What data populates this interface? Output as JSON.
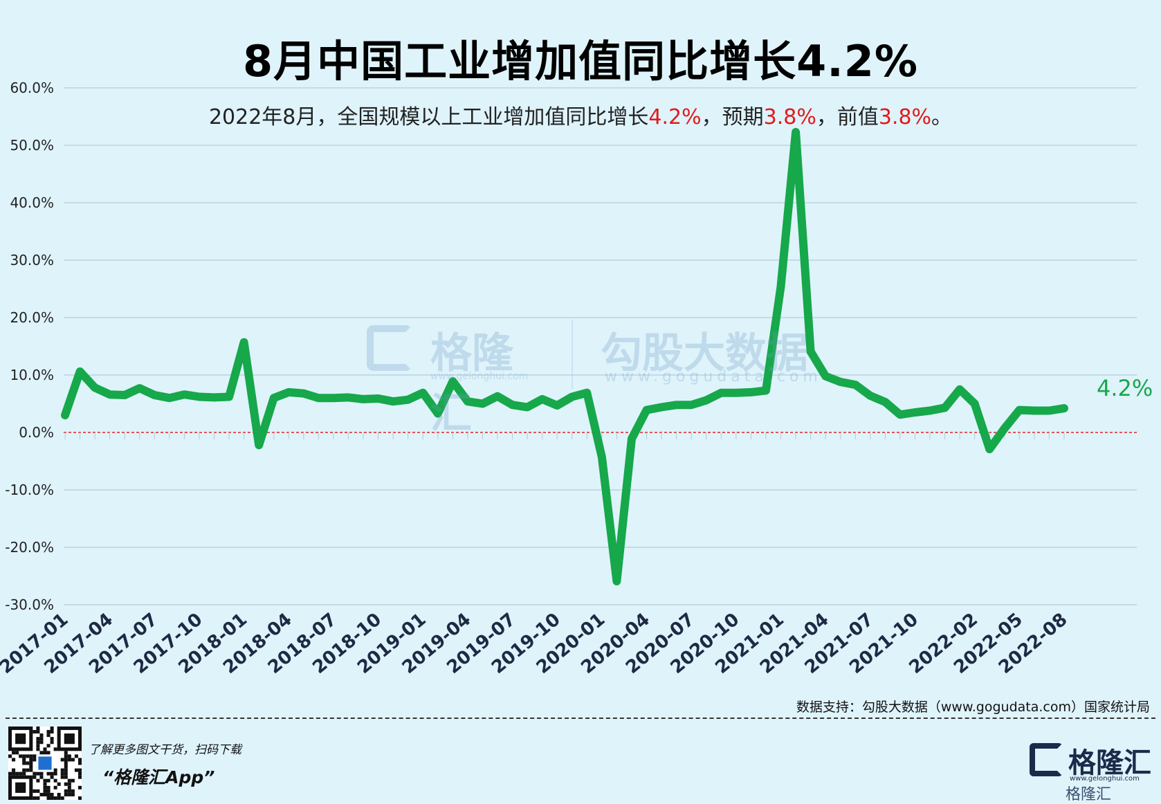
{
  "header": {
    "title": "8月中国工业增加值同比增长4.2%",
    "subtitle_parts": [
      {
        "text": "2022年8月，全国规模以上工业增加值同比增长",
        "highlight": false
      },
      {
        "text": "4.2%",
        "highlight": true
      },
      {
        "text": "，预期",
        "highlight": false
      },
      {
        "text": "3.8%",
        "highlight": true
      },
      {
        "text": "，前值",
        "highlight": false
      },
      {
        "text": "3.8%",
        "highlight": true
      },
      {
        "text": "。",
        "highlight": false
      }
    ]
  },
  "watermark": {
    "brand": "格隆汇",
    "brand_url": "www.gelonghui.com",
    "data_brand": "勾股大数据",
    "data_url": "www.gogudata.com"
  },
  "chart_data": {
    "type": "line",
    "ylim": [
      -30,
      60
    ],
    "yticks": [
      60,
      50,
      40,
      30,
      20,
      10,
      0,
      -10,
      -20,
      -30
    ],
    "ytick_labels": [
      "60.0%",
      "50.0%",
      "40.0%",
      "30.0%",
      "20.0%",
      "10.0%",
      "0.0%",
      "-10.0%",
      "-20.0%",
      "-30.0%"
    ],
    "x": [
      "2017-01",
      "2017-02",
      "2017-03",
      "2017-04",
      "2017-05",
      "2017-06",
      "2017-07",
      "2017-08",
      "2017-09",
      "2017-10",
      "2017-11",
      "2017-12",
      "2018-01",
      "2018-02",
      "2018-03",
      "2018-04",
      "2018-05",
      "2018-06",
      "2018-07",
      "2018-08",
      "2018-09",
      "2018-10",
      "2018-11",
      "2018-12",
      "2019-01",
      "2019-02",
      "2019-03",
      "2019-04",
      "2019-05",
      "2019-06",
      "2019-07",
      "2019-08",
      "2019-09",
      "2019-10",
      "2019-11",
      "2019-12",
      "2020-01",
      "2020-02",
      "2020-03",
      "2020-04",
      "2020-05",
      "2020-06",
      "2020-07",
      "2020-08",
      "2020-09",
      "2020-10",
      "2020-11",
      "2020-12",
      "2021-01",
      "2021-02",
      "2021-03",
      "2021-04",
      "2021-05",
      "2021-06",
      "2021-07",
      "2021-08",
      "2021-09",
      "2021-10",
      "2021-11",
      "2021-12",
      "2022-01",
      "2022-02",
      "2022-03",
      "2022-04",
      "2022-05",
      "2022-06",
      "2022-07",
      "2022-08"
    ],
    "x_tick_labels": [
      "2017-01",
      "2017-04",
      "2017-07",
      "2017-10",
      "2018-01",
      "2018-04",
      "2018-07",
      "2018-10",
      "2019-01",
      "2019-04",
      "2019-07",
      "2019-10",
      "2020-01",
      "2020-04",
      "2020-07",
      "2020-10",
      "2021-01",
      "2021-04",
      "2021-07",
      "2021-10",
      "2022-02",
      "2022-05",
      "2022-08"
    ],
    "series": [
      {
        "values": [
          3.0,
          10.6,
          7.8,
          6.6,
          6.5,
          7.7,
          6.5,
          6.0,
          6.6,
          6.2,
          6.1,
          6.2,
          15.7,
          -2.2,
          6.0,
          7.0,
          6.8,
          6.0,
          6.0,
          6.1,
          5.8,
          5.9,
          5.4,
          5.7,
          6.9,
          3.3,
          8.9,
          5.4,
          5.0,
          6.3,
          4.8,
          4.4,
          5.8,
          4.7,
          6.2,
          6.9,
          -4.3,
          -25.9,
          -1.1,
          3.9,
          4.4,
          4.8,
          4.8,
          5.6,
          6.9,
          6.9,
          7.0,
          7.3,
          25.4,
          52.3,
          14.1,
          9.8,
          8.8,
          8.3,
          6.4,
          5.3,
          3.1,
          3.5,
          3.8,
          4.3,
          7.5,
          5.0,
          -2.9,
          0.7,
          3.9,
          3.8,
          3.8,
          4.2
        ],
        "color": "#16a84a"
      }
    ],
    "end_label": "4.2%",
    "reference_line": {
      "y": 0,
      "color": "#e02020",
      "style": "dashed"
    },
    "grid": true
  },
  "footer": {
    "source": "数据支持：勾股大数据（www.gogudata.com）国家统计局",
    "promo_line1": "了解更多图文干货，扫码下载",
    "promo_line2": "“格隆汇App”",
    "brand_name": "格隆汇",
    "brand_url": "www.gelonghui.com",
    "brand_small": "格隆汇"
  }
}
